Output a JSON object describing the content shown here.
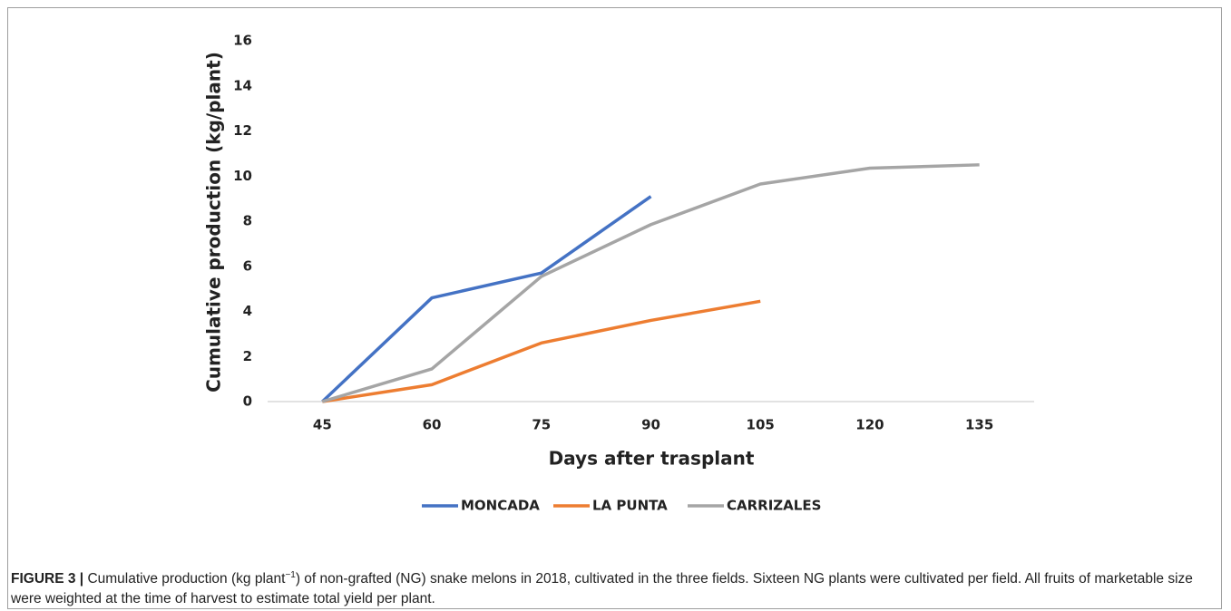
{
  "chart_data": {
    "type": "line",
    "y_label": "Cumulative production  (kg/plant)",
    "x_label": "Days after trasplant",
    "categories": [
      "45",
      "60",
      "75",
      "90",
      "105",
      "120",
      "135"
    ],
    "series": [
      {
        "name": "MONCADA",
        "color": "#4472c4",
        "values": [
          0,
          4.6,
          5.7,
          9.1,
          null,
          null,
          null
        ]
      },
      {
        "name": "LA PUNTA",
        "color": "#ed7d31",
        "values": [
          0,
          0.75,
          2.6,
          3.6,
          4.45,
          null,
          null
        ]
      },
      {
        "name": "CARRIZALES",
        "color": "#a5a5a5",
        "values": [
          0,
          1.45,
          5.55,
          7.85,
          9.65,
          10.35,
          10.5
        ]
      }
    ],
    "ylim": [
      0,
      16
    ],
    "yticks": [
      0,
      2,
      4,
      6,
      8,
      10,
      12,
      14,
      16
    ],
    "grid": false,
    "legend": "bottom"
  },
  "caption": {
    "label": "FIGURE 3 |",
    "text": "Cumulative production (kg plant",
    "sup": "−1",
    "rest": ") of non-grafted (NG) snake melons in 2018, cultivated in the three fields. Sixteen NG plants were cultivated per field. All fruits of marketable size were weighted at the time of harvest to estimate total yield per plant."
  }
}
